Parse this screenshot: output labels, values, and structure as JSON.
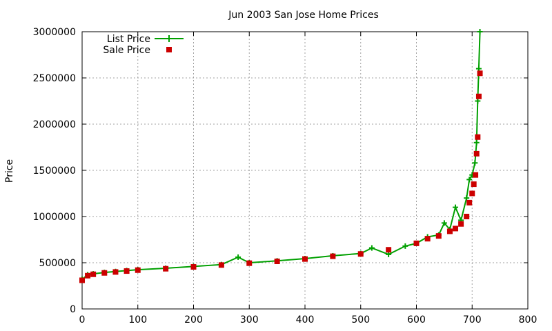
{
  "chart_data": {
    "type": "line",
    "title": "Jun 2003 San Jose Home Prices",
    "xlabel": "",
    "ylabel": "Price",
    "xlim": [
      0,
      800
    ],
    "ylim": [
      0,
      3000000
    ],
    "x_ticks": [
      "0",
      "100",
      "200",
      "300",
      "400",
      "500",
      "600",
      "700",
      "800"
    ],
    "y_ticks": [
      "0",
      "500000",
      "1000000",
      "1500000",
      "2000000",
      "2500000",
      "3000000"
    ],
    "grid": true,
    "legend_position": "top-left",
    "series": [
      {
        "name": "List Price",
        "style": "line+cross",
        "color": "#00a000",
        "x": [
          0,
          10,
          20,
          40,
          60,
          80,
          100,
          150,
          200,
          250,
          280,
          300,
          350,
          400,
          450,
          500,
          520,
          550,
          580,
          600,
          620,
          640,
          650,
          660,
          670,
          680,
          690,
          695,
          700,
          705,
          708,
          710,
          712,
          714
        ],
        "y": [
          320000,
          370000,
          380000,
          395000,
          405000,
          415000,
          425000,
          440000,
          460000,
          480000,
          560000,
          500000,
          520000,
          545000,
          575000,
          600000,
          660000,
          590000,
          680000,
          710000,
          780000,
          800000,
          930000,
          860000,
          1100000,
          960000,
          1200000,
          1400000,
          1450000,
          1580000,
          1800000,
          2250000,
          2600000,
          3000000
        ]
      },
      {
        "name": "Sale Price",
        "style": "points",
        "color": "#cc0000",
        "x": [
          0,
          10,
          20,
          40,
          60,
          80,
          100,
          150,
          200,
          250,
          300,
          350,
          400,
          450,
          500,
          550,
          600,
          620,
          640,
          660,
          670,
          680,
          690,
          695,
          700,
          703,
          706,
          708,
          710,
          712,
          714
        ],
        "y": [
          310000,
          360000,
          375000,
          390000,
          400000,
          410000,
          420000,
          435000,
          455000,
          475000,
          495000,
          515000,
          540000,
          570000,
          595000,
          640000,
          710000,
          760000,
          790000,
          840000,
          870000,
          920000,
          1000000,
          1150000,
          1250000,
          1350000,
          1450000,
          1680000,
          1860000,
          2300000,
          2550000
        ]
      }
    ]
  }
}
